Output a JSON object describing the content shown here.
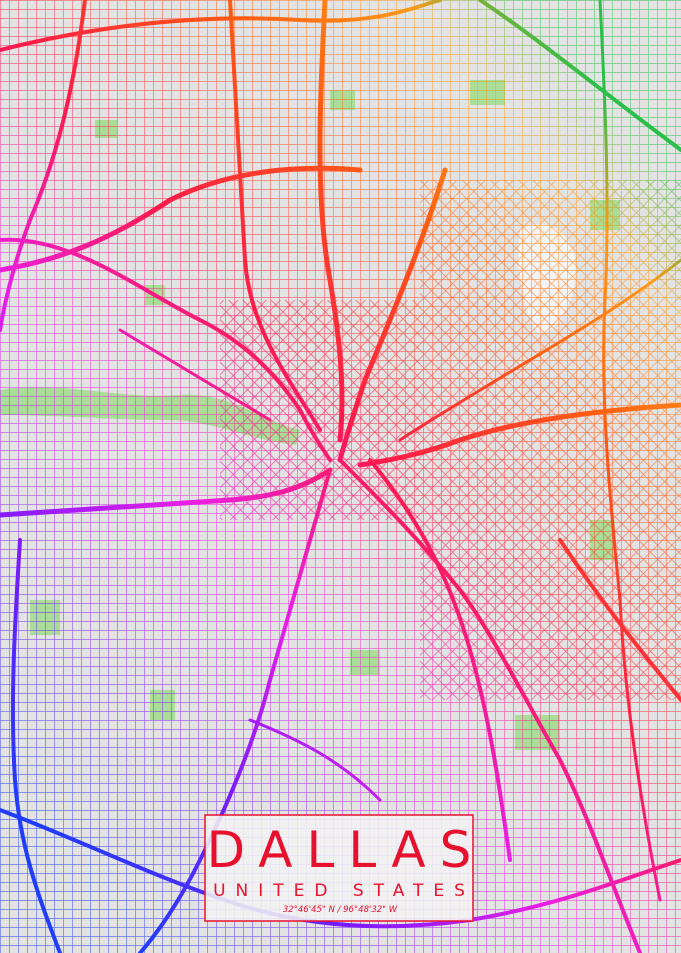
{
  "title": "DALLAS",
  "subtitle": "UNITED STATES",
  "coordinates": "32°46'45\" N / 96°48'32\" W"
}
